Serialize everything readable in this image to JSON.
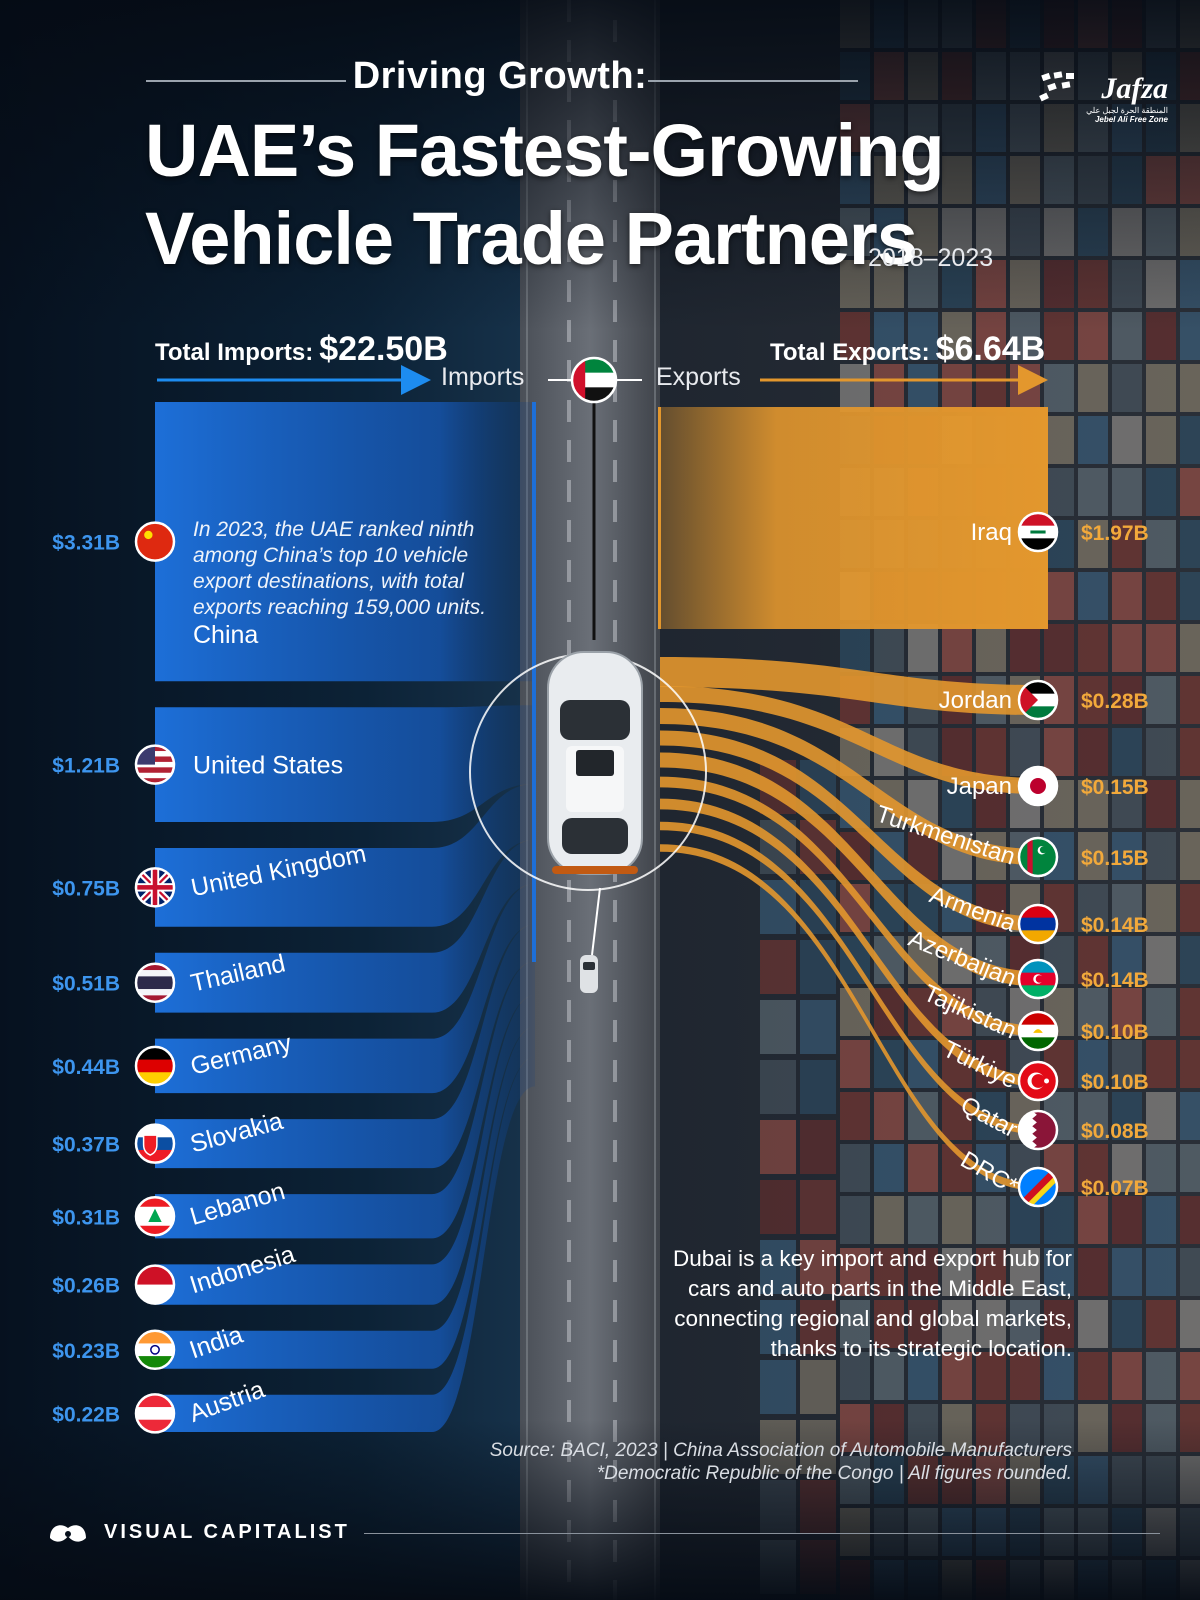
{
  "header": {
    "kicker": "Driving Growth:",
    "title_line1": "UAE’s Fastest-Growing",
    "title_line2": "Vehicle Trade Partners",
    "years": "2018–2023"
  },
  "brand": {
    "name": "Jafza",
    "arabic": "المنطقة الحرة لجبل علي",
    "sub": "Jebel Ali Free Zone",
    "icon": "jafza-logo-icon"
  },
  "totals": {
    "imports_label": "Total Imports:",
    "imports_value": "$22.50B",
    "exports_label": "Total Exports:",
    "exports_value": "$6.64B"
  },
  "directions": {
    "imports": "Imports",
    "exports": "Exports",
    "center_icon": "uae-flag-icon"
  },
  "china_note": "In 2023, the UAE ranked ninth among China’s top 10 vehicle export destinations, with total exports reaching 159,000 units.",
  "hub_note": "Dubai is a key import and export hub for cars and auto parts in the Middle East, connecting regional and global markets, thanks to its strategic location.",
  "source": "Source: BACI, 2023 | China Association of Automobile Manufacturers",
  "footnote": "*Democratic Republic of the Congo | All figures rounded.",
  "publisher": {
    "name": "VISUAL CAPITALIST",
    "icon": "visual-capitalist-logo-icon"
  },
  "colors": {
    "imports": "#1d6fd8",
    "imports_text": "#3d95ee",
    "exports": "#e3972d",
    "exports_text": "#f2a93b",
    "uae_red": "#d0102b",
    "uae_green": "#00843d"
  },
  "chart_data": {
    "type": "sankey",
    "unit": "$B",
    "center": "UAE",
    "imports": [
      {
        "name": "China",
        "label": "$3.31B",
        "value": 3.31,
        "flag": "china-flag-icon"
      },
      {
        "name": "United States",
        "label": "$1.21B",
        "value": 1.21,
        "flag": "usa-flag-icon"
      },
      {
        "name": "United Kingdom",
        "label": "$0.75B",
        "value": 0.75,
        "flag": "uk-flag-icon"
      },
      {
        "name": "Thailand",
        "label": "$0.51B",
        "value": 0.51,
        "flag": "thailand-flag-icon"
      },
      {
        "name": "Germany",
        "label": "$0.44B",
        "value": 0.44,
        "flag": "germany-flag-icon"
      },
      {
        "name": "Slovakia",
        "label": "$0.37B",
        "value": 0.37,
        "flag": "slovakia-flag-icon"
      },
      {
        "name": "Lebanon",
        "label": "$0.31B",
        "value": 0.31,
        "flag": "lebanon-flag-icon"
      },
      {
        "name": "Indonesia",
        "label": "$0.26B",
        "value": 0.26,
        "flag": "indonesia-flag-icon"
      },
      {
        "name": "India",
        "label": "$0.23B",
        "value": 0.23,
        "flag": "india-flag-icon"
      },
      {
        "name": "Austria",
        "label": "$0.22B",
        "value": 0.22,
        "flag": "austria-flag-icon"
      }
    ],
    "exports": [
      {
        "name": "Iraq",
        "label": "$1.97B",
        "value": 1.97,
        "flag": "iraq-flag-icon"
      },
      {
        "name": "Jordan",
        "label": "$0.28B",
        "value": 0.28,
        "flag": "jordan-flag-icon"
      },
      {
        "name": "Japan",
        "label": "$0.15B",
        "value": 0.15,
        "flag": "japan-flag-icon"
      },
      {
        "name": "Turkmenistan",
        "label": "$0.15B",
        "value": 0.15,
        "flag": "turkmenistan-flag-icon"
      },
      {
        "name": "Armenia",
        "label": "$0.14B",
        "value": 0.14,
        "flag": "armenia-flag-icon"
      },
      {
        "name": "Azerbaijan",
        "label": "$0.14B",
        "value": 0.14,
        "flag": "azerbaijan-flag-icon"
      },
      {
        "name": "Tajikistan",
        "label": "$0.10B",
        "value": 0.1,
        "flag": "tajikistan-flag-icon"
      },
      {
        "name": "Türkiye",
        "label": "$0.10B",
        "value": 0.1,
        "flag": "turkiye-flag-icon"
      },
      {
        "name": "Qatar",
        "label": "$0.08B",
        "value": 0.08,
        "flag": "qatar-flag-icon"
      },
      {
        "name": "DRC*",
        "label": "$0.07B",
        "value": 0.07,
        "flag": "drc-flag-icon"
      }
    ]
  }
}
